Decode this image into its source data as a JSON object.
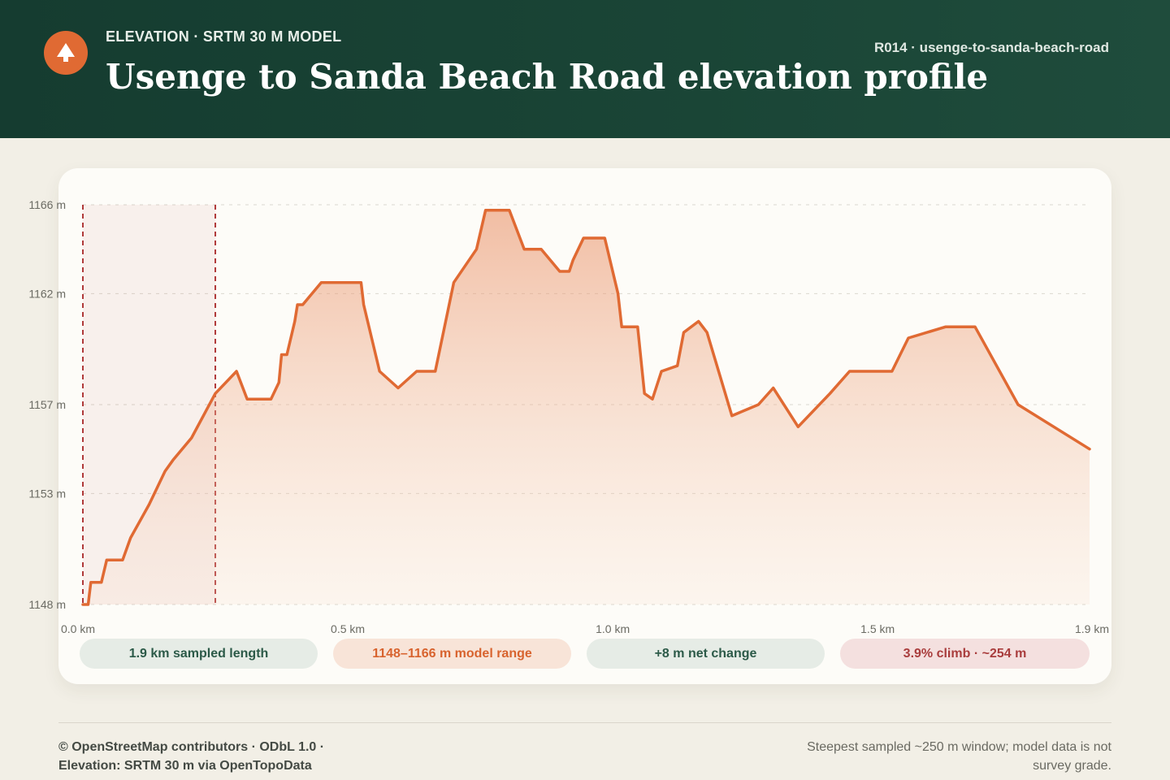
{
  "header": {
    "eyebrow": "ELEVATION · SRTM 30 M MODEL",
    "title": "Usenge to Sanda Beach Road elevation profile",
    "route_id": "R014 · usenge-to-sanda-beach-road",
    "logo_icon": "mountain-icon",
    "background_color": "#1a4536",
    "accent_color": "#e06a33"
  },
  "stats": {
    "length": "1.9 km sampled length",
    "range": "1148–1166 m model range",
    "net": "+8 m net change",
    "climb": "3.9% climb · ~254 m"
  },
  "footer": {
    "attribution_line1": "© OpenStreetMap contributors · ODbL 1.0 ·",
    "attribution_line2": "Elevation: SRTM 30 m via OpenTopoData",
    "note": "Steepest sampled ~250 m window; model data is not survey grade."
  },
  "chart_data": {
    "type": "area",
    "line_color": "#e06a33",
    "highlight_color": "#b03a3a",
    "xlim": [
      0,
      1.9
    ],
    "ylim": [
      1148,
      1166
    ],
    "y_ticks": [
      1148,
      1153,
      1157,
      1162,
      1166
    ],
    "y_tick_labels": [
      "1148 m",
      "1153 m",
      "1157 m",
      "1162 m",
      "1166 m"
    ],
    "x_ticks": [
      0,
      0.5,
      1.0,
      1.5,
      1.9
    ],
    "x_tick_labels": [
      "0.0 km",
      "0.5 km",
      "1.0 km",
      "1.5 km",
      "1.9 km"
    ],
    "grid": true,
    "highlight_window": [
      0.0,
      0.25
    ],
    "x": [
      0,
      0.01,
      0.015,
      0.035,
      0.045,
      0.075,
      0.09,
      0.125,
      0.155,
      0.17,
      0.205,
      0.25,
      0.29,
      0.31,
      0.355,
      0.37,
      0.375,
      0.385,
      0.4,
      0.405,
      0.415,
      0.45,
      0.525,
      0.53,
      0.545,
      0.56,
      0.595,
      0.63,
      0.665,
      0.7,
      0.743,
      0.76,
      0.805,
      0.833,
      0.865,
      0.9,
      0.918,
      0.925,
      0.945,
      0.985,
      1.01,
      1.017,
      1.047,
      1.06,
      1.075,
      1.092,
      1.122,
      1.134,
      1.162,
      1.178,
      1.225,
      1.275,
      1.303,
      1.35,
      1.41,
      1.447,
      1.527,
      1.558,
      1.628,
      1.684,
      1.765,
      1.9
    ],
    "y": [
      1148,
      1148,
      1149,
      1149,
      1150,
      1150,
      1151,
      1152.5,
      1154,
      1154.5,
      1155.5,
      1157.5,
      1158.5,
      1157.25,
      1157.25,
      1158,
      1159.25,
      1159.25,
      1160.75,
      1161.5,
      1161.5,
      1162.5,
      1162.5,
      1161.5,
      1160,
      1158.5,
      1157.75,
      1158.5,
      1158.5,
      1162.5,
      1164,
      1165.75,
      1165.75,
      1164,
      1164,
      1163,
      1163,
      1163.5,
      1164.5,
      1164.5,
      1162,
      1160.5,
      1160.5,
      1157.5,
      1157.25,
      1158.5,
      1158.75,
      1160.25,
      1160.75,
      1160.25,
      1156.5,
      1157,
      1157.75,
      1156,
      1157.5,
      1158.5,
      1158.5,
      1160,
      1160.5,
      1160.5,
      1157,
      1155
    ]
  }
}
